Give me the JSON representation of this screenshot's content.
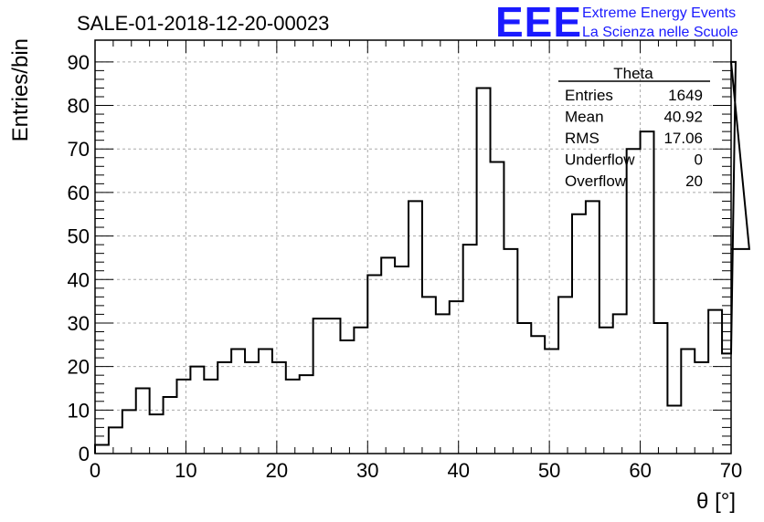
{
  "header": {
    "title": "SALE-01-2018-12-20-00023",
    "logo_text": "EEE",
    "logo_line1": "Extreme Energy Events",
    "logo_line2": "La Scienza nelle Scuole"
  },
  "stats_box": {
    "title": "Theta",
    "rows": [
      {
        "label": "Entries",
        "value": "1649"
      },
      {
        "label": "Mean",
        "value": "40.92"
      },
      {
        "label": "RMS",
        "value": "17.06"
      },
      {
        "label": "Underflow",
        "value": "0"
      },
      {
        "label": "Overflow",
        "value": "20"
      }
    ]
  },
  "colors": {
    "logo": "#1a1aff",
    "line": "#000000",
    "grid": "#aaaaaa"
  },
  "chart_data": {
    "type": "bar",
    "style": "step-histogram",
    "title": "SALE-01-2018-12-20-00023",
    "xlabel": "θ [°]",
    "ylabel": "Entries/bin",
    "xlim": [
      0,
      70
    ],
    "ylim": [
      0,
      95
    ],
    "grid": true,
    "bin_width": 1.5,
    "bin_start": 0,
    "x_ticks": [
      0,
      10,
      20,
      30,
      40,
      50,
      60,
      70
    ],
    "y_ticks": [
      0,
      10,
      20,
      30,
      40,
      50,
      60,
      70,
      80,
      90
    ],
    "values": [
      2,
      6,
      10,
      15,
      9,
      13,
      17,
      20,
      17,
      21,
      24,
      21,
      24,
      21,
      17,
      18,
      31,
      31,
      26,
      29,
      41,
      45,
      43,
      58,
      36,
      32,
      35,
      48,
      84,
      67,
      47,
      30,
      27,
      24,
      36,
      55,
      58,
      29,
      32,
      70,
      74,
      30,
      11,
      24,
      21,
      33,
      23,
      90,
      47
    ]
  }
}
